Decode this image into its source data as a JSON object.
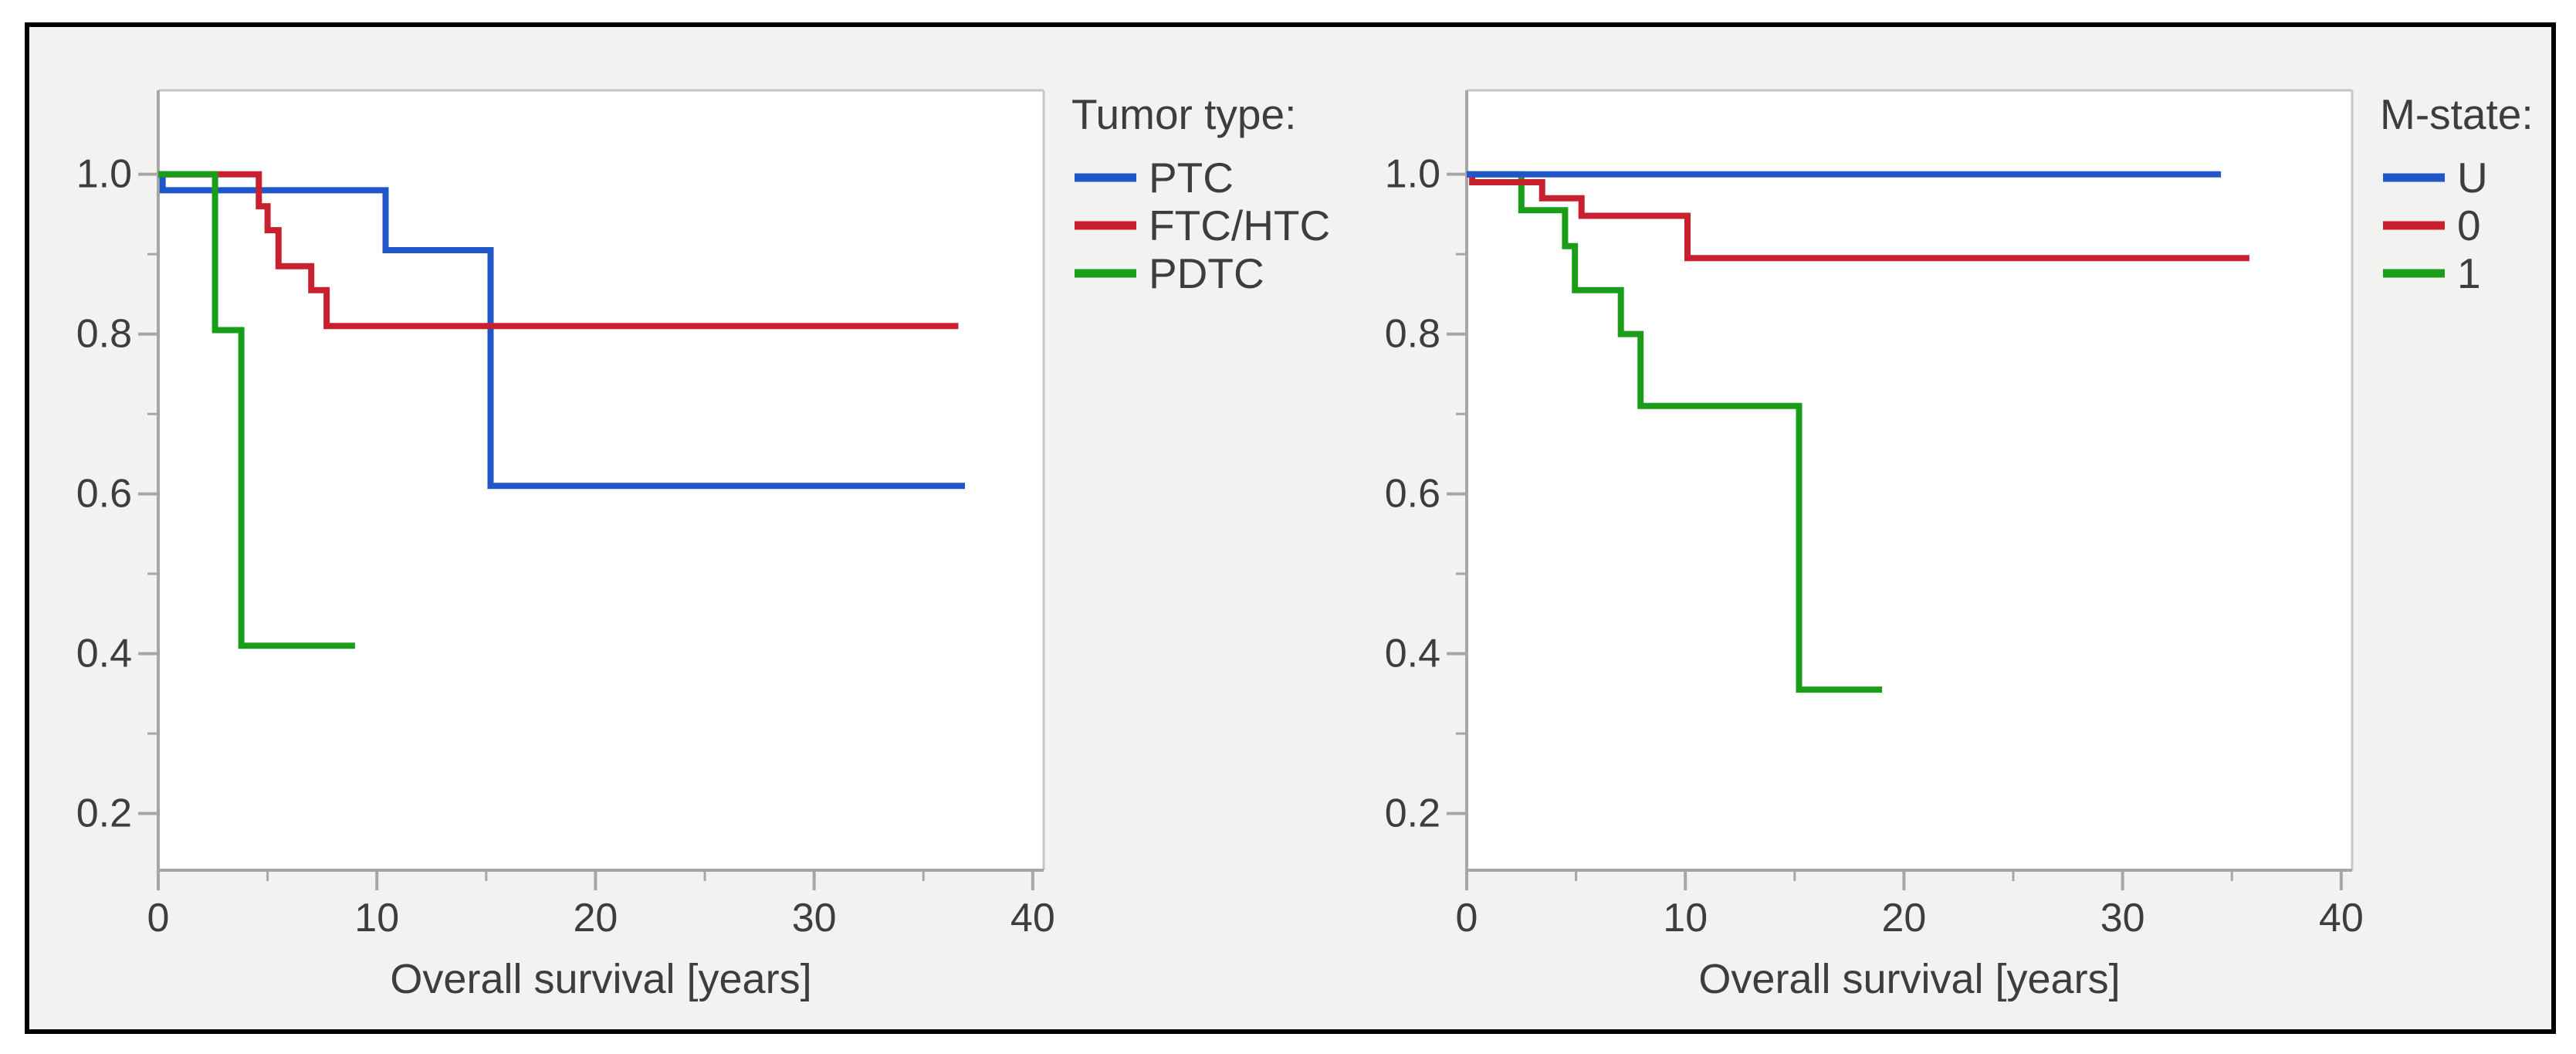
{
  "page": {
    "background": "#ffffff"
  },
  "figure": {
    "description": "Two Kaplan-Meier overall survival step plots",
    "panel_border_color": "#000000",
    "panel_background": "#f2f2f1",
    "plot_background": "#ffffff",
    "axis_line_color": "#a6a6a6",
    "frame_line_color": "#c7c7c7",
    "text_color": "#3d3d3d",
    "series_palette": {
      "blue": "#2156c9",
      "red": "#c8202e",
      "green": "#1a9e1a"
    }
  },
  "chart_data": [
    {
      "id": "tumor-type",
      "type": "line",
      "subtype": "kaplan-meier-step",
      "xlabel": "Overall survival [years]",
      "ylabel": "",
      "legend_title": "Tumor type:",
      "legend_position": "right",
      "grid": false,
      "xlim": [
        0,
        40.5
      ],
      "ylim": [
        0.129,
        1.105
      ],
      "x_ticks": [
        {
          "value": 0,
          "label": "0"
        },
        {
          "value": 10,
          "label": "10"
        },
        {
          "value": 20,
          "label": "20"
        },
        {
          "value": 30,
          "label": "30"
        },
        {
          "value": 40,
          "label": "40"
        }
      ],
      "x_minor_ticks": [
        5,
        15,
        25,
        35
      ],
      "y_ticks": [
        {
          "value": 1.0,
          "label": "1.0"
        },
        {
          "value": 0.8,
          "label": "0.8"
        },
        {
          "value": 0.6,
          "label": "0.6"
        },
        {
          "value": 0.4,
          "label": "0.4"
        },
        {
          "value": 0.2,
          "label": "0.2"
        }
      ],
      "y_minor_ticks": [
        0.9,
        0.7,
        0.5,
        0.3
      ],
      "draw_order": [
        0,
        1,
        2
      ],
      "series": [
        {
          "name": "PTC",
          "color": "blue",
          "points": [
            [
              0,
              1.0
            ],
            [
              0.2,
              1.0
            ],
            [
              0.2,
              0.98
            ],
            [
              10.4,
              0.98
            ],
            [
              10.4,
              0.905
            ],
            [
              15.2,
              0.905
            ],
            [
              15.2,
              0.61
            ],
            [
              36.9,
              0.61
            ]
          ]
        },
        {
          "name": "FTC/HTC",
          "color": "red",
          "points": [
            [
              0,
              1.0
            ],
            [
              4.6,
              1.0
            ],
            [
              4.6,
              0.96
            ],
            [
              5.0,
              0.96
            ],
            [
              5.0,
              0.93
            ],
            [
              5.5,
              0.93
            ],
            [
              5.5,
              0.885
            ],
            [
              7.0,
              0.885
            ],
            [
              7.0,
              0.855
            ],
            [
              7.7,
              0.855
            ],
            [
              7.7,
              0.81
            ],
            [
              36.6,
              0.81
            ]
          ]
        },
        {
          "name": "PDTC",
          "color": "green",
          "points": [
            [
              0,
              1.0
            ],
            [
              2.6,
              1.0
            ],
            [
              2.6,
              0.805
            ],
            [
              3.8,
              0.805
            ],
            [
              3.8,
              0.41
            ],
            [
              9.0,
              0.41
            ]
          ]
        }
      ]
    },
    {
      "id": "m-state",
      "type": "line",
      "subtype": "kaplan-meier-step",
      "xlabel": "Overall survival [years]",
      "ylabel": "",
      "legend_title": "M-state:",
      "legend_position": "right",
      "grid": false,
      "xlim": [
        0,
        40.5
      ],
      "ylim": [
        0.129,
        1.105
      ],
      "x_ticks": [
        {
          "value": 0,
          "label": "0"
        },
        {
          "value": 10,
          "label": "10"
        },
        {
          "value": 20,
          "label": "20"
        },
        {
          "value": 30,
          "label": "30"
        },
        {
          "value": 40,
          "label": "40"
        }
      ],
      "x_minor_ticks": [
        5,
        15,
        25,
        35
      ],
      "y_ticks": [
        {
          "value": 1.0,
          "label": "1.0"
        },
        {
          "value": 0.8,
          "label": "0.8"
        },
        {
          "value": 0.6,
          "label": "0.6"
        },
        {
          "value": 0.4,
          "label": "0.4"
        },
        {
          "value": 0.2,
          "label": "0.2"
        }
      ],
      "y_minor_ticks": [
        0.9,
        0.7,
        0.5,
        0.3
      ],
      "draw_order": [
        2,
        1,
        0
      ],
      "series": [
        {
          "name": "U",
          "color": "blue",
          "points": [
            [
              0,
              1.0
            ],
            [
              34.5,
              1.0
            ]
          ]
        },
        {
          "name": "0",
          "color": "red",
          "points": [
            [
              0,
              1.0
            ],
            [
              0.25,
              1.0
            ],
            [
              0.25,
              0.99
            ],
            [
              3.45,
              0.99
            ],
            [
              3.45,
              0.97
            ],
            [
              5.25,
              0.97
            ],
            [
              5.25,
              0.948
            ],
            [
              10.1,
              0.948
            ],
            [
              10.1,
              0.895
            ],
            [
              35.8,
              0.895
            ]
          ]
        },
        {
          "name": "1",
          "color": "green",
          "points": [
            [
              0,
              1.0
            ],
            [
              2.5,
              1.0
            ],
            [
              2.5,
              0.955
            ],
            [
              4.5,
              0.955
            ],
            [
              4.5,
              0.91
            ],
            [
              4.95,
              0.91
            ],
            [
              4.95,
              0.855
            ],
            [
              7.05,
              0.855
            ],
            [
              7.05,
              0.8
            ],
            [
              7.95,
              0.8
            ],
            [
              7.95,
              0.71
            ],
            [
              15.2,
              0.71
            ],
            [
              15.2,
              0.355
            ],
            [
              19.0,
              0.355
            ]
          ]
        }
      ]
    }
  ]
}
